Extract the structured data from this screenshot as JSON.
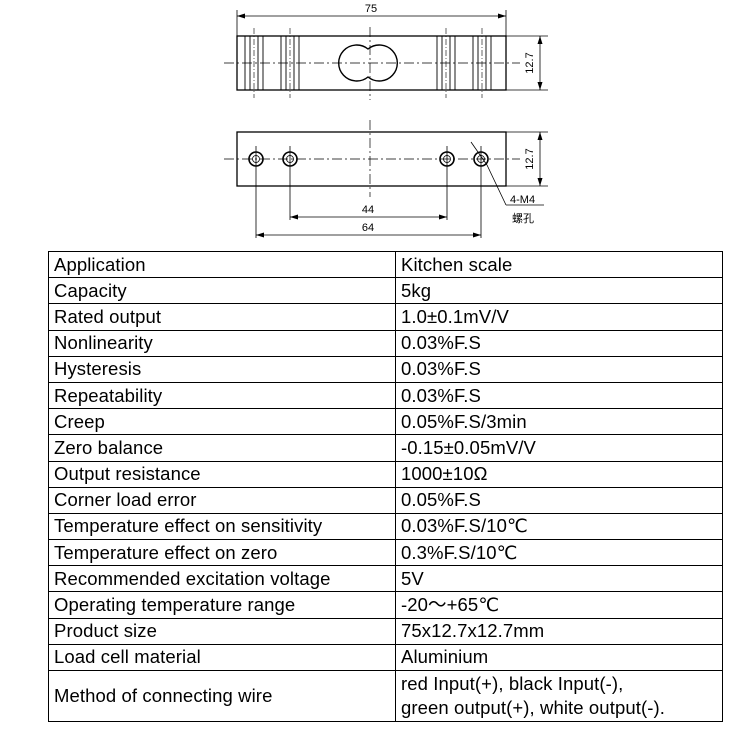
{
  "drawing": {
    "dimensions": {
      "overall_length": "75",
      "height_top": "12.7",
      "height_bottom": "12.7",
      "inner_hole_spacing": "44",
      "outer_hole_spacing": "64",
      "thread_callout": "4-M4",
      "thread_note": "螺孔"
    }
  },
  "specs": {
    "rows": [
      {
        "param": "Application",
        "value": "Kitchen scale"
      },
      {
        "param": "Capacity",
        "value": "5kg"
      },
      {
        "param": "Rated output",
        "value": "1.0±0.1mV/V"
      },
      {
        "param": "Nonlinearity",
        "value": "0.03%F.S"
      },
      {
        "param": "Hysteresis",
        "value": "0.03%F.S"
      },
      {
        "param": "Repeatability",
        "value": "0.03%F.S"
      },
      {
        "param": "Creep",
        "value": "0.05%F.S/3min"
      },
      {
        "param": "Zero balance",
        "value": "-0.15±0.05mV/V"
      },
      {
        "param": "Output resistance",
        "value": "1000±10Ω"
      },
      {
        "param": "Corner load error",
        "value": "0.05%F.S"
      },
      {
        "param": "Temperature effect on sensitivity",
        "value": "0.03%F.S/10℃"
      },
      {
        "param": "Temperature effect on zero",
        "value": "0.3%F.S/10℃"
      },
      {
        "param": "Recommended excitation voltage",
        "value": "5V"
      },
      {
        "param": "Operating temperature range",
        "value": "-20～+65℃"
      },
      {
        "param": "Product size",
        "value": "75x12.7x12.7mm"
      },
      {
        "param": "Load cell material",
        "value": "Aluminium"
      }
    ],
    "wire_row": {
      "param": "Method of connecting wire",
      "value_line1": "red Input(+), black Input(-),",
      "value_line2": "green output(+), white output(-)."
    }
  }
}
